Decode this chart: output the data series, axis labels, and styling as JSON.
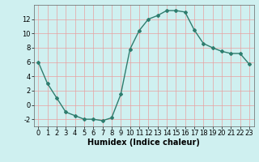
{
  "x": [
    0,
    1,
    2,
    3,
    4,
    5,
    6,
    7,
    8,
    9,
    10,
    11,
    12,
    13,
    14,
    15,
    16,
    17,
    18,
    19,
    20,
    21,
    22,
    23
  ],
  "y": [
    6,
    3,
    1,
    -1,
    -1.5,
    -2,
    -2,
    -2.2,
    -1.8,
    1.5,
    7.8,
    10.4,
    12.0,
    12.5,
    13.2,
    13.2,
    13.0,
    10.5,
    8.6,
    8.0,
    7.5,
    7.2,
    7.2,
    5.7
  ],
  "line_color": "#2e7d6e",
  "marker": "D",
  "marker_size": 2.0,
  "line_width": 1.0,
  "xlabel": "Humidex (Indice chaleur)",
  "xlim": [
    -0.5,
    23.5
  ],
  "ylim": [
    -3,
    14
  ],
  "yticks": [
    -2,
    0,
    2,
    4,
    6,
    8,
    10,
    12
  ],
  "xticks": [
    0,
    1,
    2,
    3,
    4,
    5,
    6,
    7,
    8,
    9,
    10,
    11,
    12,
    13,
    14,
    15,
    16,
    17,
    18,
    19,
    20,
    21,
    22,
    23
  ],
  "xtick_labels": [
    "0",
    "1",
    "2",
    "3",
    "4",
    "5",
    "6",
    "7",
    "8",
    "9",
    "10",
    "11",
    "12",
    "13",
    "14",
    "15",
    "16",
    "17",
    "18",
    "19",
    "20",
    "21",
    "22",
    "23"
  ],
  "background_color": "#cff0f0",
  "grid_color": "#e8a0a0",
  "tick_fontsize": 6,
  "xlabel_fontsize": 7
}
